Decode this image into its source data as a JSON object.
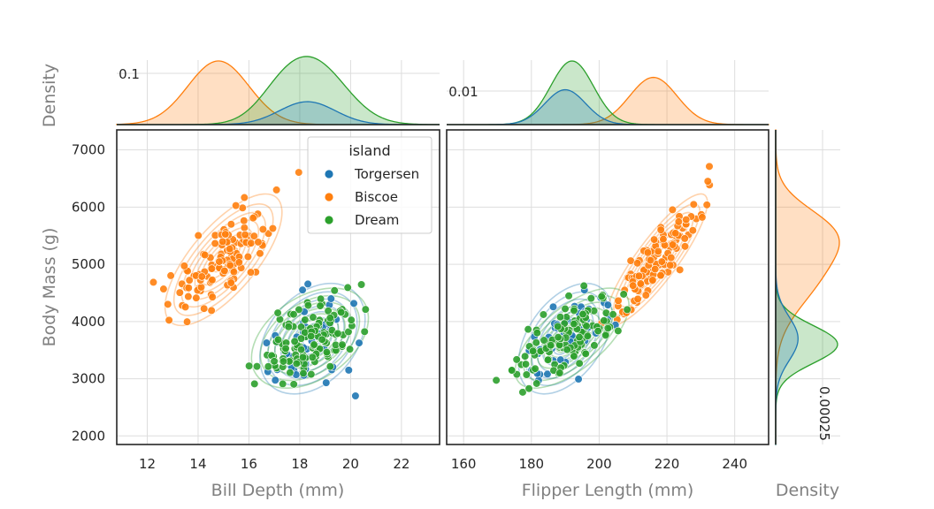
{
  "chart_data": {
    "type": "scatter",
    "shared_ylabel": "Body Mass (g)",
    "y_ticks": [
      2000,
      3000,
      4000,
      5000,
      6000,
      7000
    ],
    "ylim": [
      1850,
      7350
    ],
    "legend": {
      "title": "island",
      "placement": "top-right of left panel"
    },
    "series": [
      {
        "name": "Torgersen",
        "color": "#1f77b4"
      },
      {
        "name": "Biscoe",
        "color": "#ff7f0e"
      },
      {
        "name": "Dream",
        "color": "#2ca02c"
      }
    ],
    "panels": [
      {
        "xlabel": "Bill Depth (mm)",
        "x_ticks": [
          12,
          14,
          16,
          18,
          20,
          22
        ],
        "xlim": [
          10.8,
          23.5
        ],
        "centers": {
          "Torgersen": [
            18.5,
            3700
          ],
          "Biscoe": [
            15.0,
            5080
          ],
          "Dream": [
            18.4,
            3710
          ]
        },
        "spread": {
          "Torgersen": [
            0.9,
            420
          ],
          "Biscoe": [
            1.0,
            500
          ],
          "Dream": [
            1.0,
            380
          ]
        },
        "rho": {
          "Torgersen": 0.35,
          "Biscoe": 0.72,
          "Dream": 0.4
        }
      },
      {
        "xlabel": "Flipper Length (mm)",
        "x_ticks": [
          160,
          180,
          200,
          220,
          240
        ],
        "xlim": [
          155,
          250
        ],
        "centers": {
          "Torgersen": [
            190,
            3700
          ],
          "Biscoe": [
            217,
            5080
          ],
          "Dream": [
            192,
            3710
          ]
        },
        "spread": {
          "Torgersen": [
            6,
            420
          ],
          "Biscoe": [
            6.5,
            500
          ],
          "Dream": [
            7.3,
            380
          ]
        },
        "rho": {
          "Torgersen": 0.45,
          "Biscoe": 0.87,
          "Dream": 0.66
        }
      }
    ],
    "marginals": {
      "xlabel_right": "Density",
      "ylabel_top": "Density",
      "top_left_tick": "0.1",
      "top_right_tick": "0.01",
      "right_tick": "0.00025",
      "bill_depth": [
        {
          "name": "Biscoe",
          "peak_x": 14.8,
          "peak_density": 0.125
        },
        {
          "name": "Dream",
          "peak_x": 18.5,
          "peak_density": 0.123
        },
        {
          "name": "Torgersen",
          "peak_x": 18.3,
          "peak_density": 0.045
        }
      ],
      "flipper_length": [
        {
          "name": "Biscoe",
          "peak_x": 216,
          "peak_density": 0.0115
        },
        {
          "name": "Dream",
          "peak_x": 192,
          "peak_density": 0.0155
        },
        {
          "name": "Torgersen",
          "peak_x": 190,
          "peak_density": 0.0085
        }
      ],
      "body_mass": [
        {
          "name": "Biscoe",
          "peak_y": 4900,
          "peak_density": 0.00025
        },
        {
          "name": "Dream",
          "peak_y": 3600,
          "peak_density": 0.00036
        },
        {
          "name": "Torgersen",
          "peak_y": 3700,
          "peak_density": 0.00013
        }
      ]
    }
  }
}
